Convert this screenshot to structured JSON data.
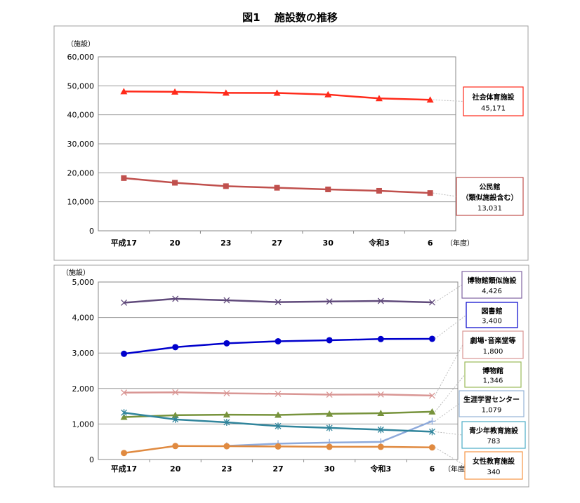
{
  "title": "図1　 施設数の推移",
  "chart_data": [
    {
      "type": "line",
      "ylabel": "（施設）",
      "xlabel": "（年度）",
      "categories": [
        "平成17",
        "20",
        "23",
        "27",
        "30",
        "令和3",
        "6"
      ],
      "ylim": [
        0,
        60000
      ],
      "yticks": [
        0,
        10000,
        20000,
        30000,
        40000,
        50000,
        60000
      ],
      "ytick_labels": [
        "0",
        "10,000",
        "20,000",
        "30,000",
        "40,000",
        "50,000",
        "60,000"
      ],
      "grid": true,
      "series": [
        {
          "name": "社会体育施設",
          "label_value": "45,171",
          "color": "#ff2a1a",
          "marker": "triangle",
          "values": [
            48055,
            47925,
            47571,
            47536,
            46981,
            45658,
            45171
          ]
        },
        {
          "name": "公民館",
          "name_line2": "（類似施設含む）",
          "label_value": "13,031",
          "color": "#c0504d",
          "marker": "square",
          "values": [
            18182,
            16566,
            15399,
            14841,
            14281,
            13798,
            13031
          ]
        }
      ]
    },
    {
      "type": "line",
      "ylabel": "（施設）",
      "xlabel": "（年度）",
      "categories": [
        "平成17",
        "20",
        "23",
        "27",
        "30",
        "令和3",
        "6"
      ],
      "ylim": [
        0,
        5000
      ],
      "yticks": [
        0,
        1000,
        2000,
        3000,
        4000,
        5000
      ],
      "ytick_labels": [
        "0",
        "1,000",
        "2,000",
        "3,000",
        "4,000",
        "5,000"
      ],
      "grid": true,
      "series": [
        {
          "name": "博物館類似施設",
          "label_value": "4,426",
          "color": "#604a7b",
          "box_color": "#8064a2",
          "marker": "x",
          "values": [
            4418,
            4527,
            4485,
            4434,
            4452,
            4466,
            4426
          ]
        },
        {
          "name": "図書館",
          "label_value": "3,400",
          "color": "#0000cc",
          "box_color": "#0000cc",
          "marker": "circle",
          "values": [
            2979,
            3165,
            3274,
            3331,
            3360,
            3394,
            3400
          ]
        },
        {
          "name": "劇場･音楽堂等",
          "label_value": "1,800",
          "color": "#d99694",
          "box_color": "#d99694",
          "marker": "x",
          "values": [
            1885,
            1893,
            1866,
            1851,
            1827,
            1832,
            1800
          ]
        },
        {
          "name": "博物館",
          "label_value": "1,346",
          "color": "#77933c",
          "box_color": "#9bbb59",
          "marker": "triangle",
          "values": [
            1196,
            1248,
            1262,
            1256,
            1286,
            1305,
            1346
          ]
        },
        {
          "name": "生涯学習センター",
          "label_value": "1,079",
          "color": "#8eaadb",
          "box_color": "#95b3d7",
          "marker": "plus",
          "values": [
            null,
            null,
            384,
            448,
            478,
            496,
            1079
          ]
        },
        {
          "name": "青少年教育施設",
          "label_value": "783",
          "color": "#31859c",
          "box_color": "#4bacc6",
          "marker": "asterisk",
          "values": [
            1320,
            1130,
            1048,
            941,
            891,
            840,
            783
          ]
        },
        {
          "name": "女性教育施設",
          "label_value": "340",
          "color": "#e08a40",
          "box_color": "#f79646",
          "marker": "circle",
          "values": [
            183,
            380,
            375,
            367,
            358,
            358,
            340
          ]
        }
      ]
    }
  ]
}
